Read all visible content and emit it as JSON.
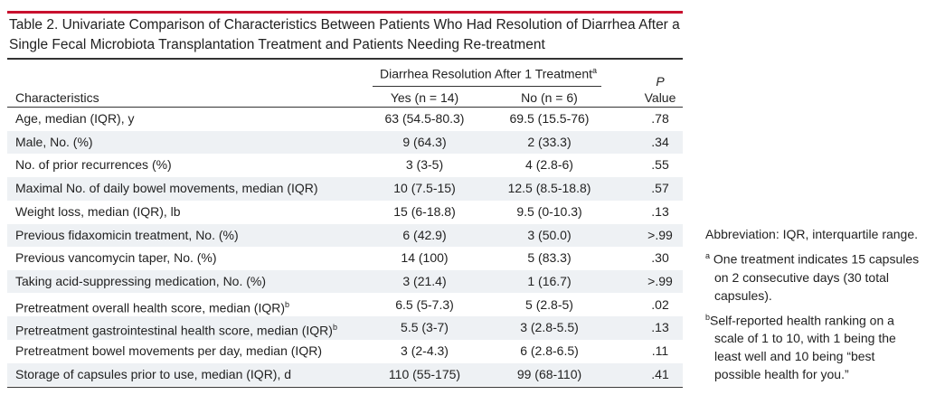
{
  "title": "Table 2. Univariate Comparison of Characteristics Between Patients Who Had Resolution of Diarrhea After a Single Fecal Microbiota Transplantation Treatment and Patients Needing Re-treatment",
  "header": {
    "group": "Diarrhea Resolution After 1 Treatment",
    "group_sup": "a",
    "characteristics": "Characteristics",
    "yes": "Yes (n = 14)",
    "no": "No (n = 6)",
    "p": "P",
    "value": "Value"
  },
  "rows": [
    {
      "label": "Age, median (IQR), y",
      "sup": "",
      "yes": "63 (54.5-80.3)",
      "no": "69.5 (15.5-76)",
      "p": ".78"
    },
    {
      "label": "Male, No. (%)",
      "sup": "",
      "yes": "9 (64.3)",
      "no": "2 (33.3)",
      "p": ".34"
    },
    {
      "label": "No. of prior recurrences (%)",
      "sup": "",
      "yes": "3 (3-5)",
      "no": "4 (2.8-6)",
      "p": ".55"
    },
    {
      "label": "Maximal No. of daily bowel movements, median (IQR)",
      "sup": "",
      "yes": "10 (7.5-15)",
      "no": "12.5 (8.5-18.8)",
      "p": ".57"
    },
    {
      "label": "Weight loss, median (IQR), lb",
      "sup": "",
      "yes": "15 (6-18.8)",
      "no": "9.5 (0-10.3)",
      "p": ".13"
    },
    {
      "label": "Previous fidaxomicin treatment, No. (%)",
      "sup": "",
      "yes": "6 (42.9)",
      "no": "3 (50.0)",
      "p": ">.99"
    },
    {
      "label": "Previous vancomycin taper, No. (%)",
      "sup": "",
      "yes": "14 (100)",
      "no": "5 (83.3)",
      "p": ".30"
    },
    {
      "label": "Taking acid-suppressing medication, No. (%)",
      "sup": "",
      "yes": "3 (21.4)",
      "no": "1 (16.7)",
      "p": ">.99"
    },
    {
      "label": "Pretreatment overall health score, median (IQR)",
      "sup": "b",
      "yes": "6.5 (5-7.3)",
      "no": "5 (2.8-5)",
      "p": ".02"
    },
    {
      "label": "Pretreatment gastrointestinal health score, median (IQR)",
      "sup": "b",
      "yes": "5.5 (3-7)",
      "no": "3 (2.8-5.5)",
      "p": ".13"
    },
    {
      "label": "Pretreatment bowel movements per day, median (IQR)",
      "sup": "",
      "yes": "3 (2-4.3)",
      "no": "6 (2.8-6.5)",
      "p": ".11"
    },
    {
      "label": "Storage of capsules prior to use, median (IQR), d",
      "sup": "",
      "yes": "110 (55-175)",
      "no": "99 (68-110)",
      "p": ".41"
    }
  ],
  "notes": {
    "abbreviation": "Abbreviation: IQR, interquartile range.",
    "a_mark": "a",
    "a_text": "One treatment indicates 15 capsules on 2 consecutive days (30 total capsules).",
    "b_mark": "b",
    "b_text": "Self-reported health ranking on a scale of 1 to 10, with 1 being the least well and 10 being “best possible health for you.”"
  },
  "colors": {
    "accent_rule": "#c8102e",
    "row_shade": "#eef1f4"
  }
}
